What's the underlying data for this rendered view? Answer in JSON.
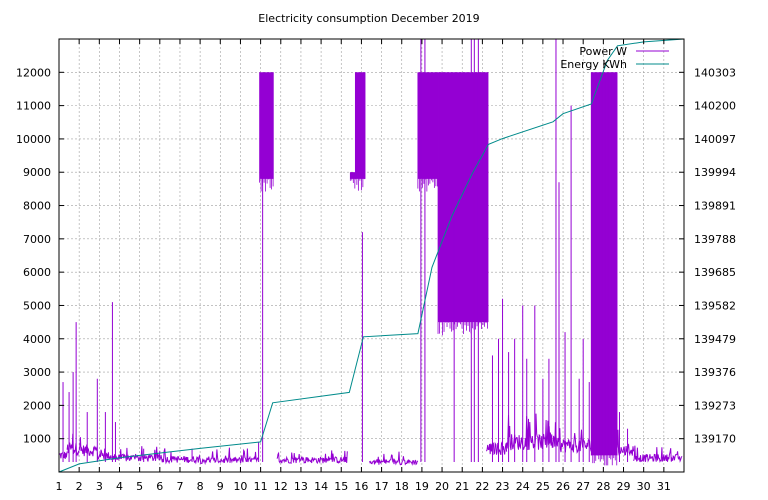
{
  "chart_data": {
    "type": "line",
    "title": "Electricity consumption December 2019",
    "xlabel": "",
    "ylabel": "",
    "y2label": "",
    "grid": true,
    "legend_position": "top-right",
    "x_ticks": [
      "1",
      "2",
      "3",
      "4",
      "5",
      "6",
      "7",
      "8",
      "9",
      "10",
      "11",
      "12",
      "13",
      "14",
      "15",
      "16",
      "17",
      "18",
      "19",
      "20",
      "21",
      "22",
      "23",
      "24",
      "25",
      "26",
      "27",
      "28",
      "29",
      "30",
      "31"
    ],
    "xlim": [
      1,
      32
    ],
    "y_ticks": [
      "1000",
      "2000",
      "3000",
      "4000",
      "5000",
      "6000",
      "7000",
      "8000",
      "9000",
      "10000",
      "11000",
      "12000"
    ],
    "ylim": [
      0,
      13000
    ],
    "y2_ticks": [
      "139170",
      "139273",
      "139376",
      "139479",
      "139582",
      "139685",
      "139788",
      "139891",
      "139994",
      "140097",
      "140200",
      "140303"
    ],
    "y2lim": [
      139067,
      140406
    ],
    "series": [
      {
        "name": "Power W",
        "axis": "y",
        "color": "#9400d3",
        "baseline_ranges": [
          [
            1.0,
            1.4,
            500
          ],
          [
            1.4,
            2.0,
            700
          ],
          [
            2.0,
            2.9,
            650
          ],
          [
            2.9,
            3.6,
            480
          ],
          [
            3.6,
            4.0,
            420
          ],
          [
            4.0,
            6.0,
            420
          ],
          [
            6.0,
            8.0,
            380
          ],
          [
            8.0,
            10.9,
            350
          ],
          [
            11.8,
            15.3,
            360
          ],
          [
            16.4,
            18.8,
            300
          ],
          [
            22.2,
            23.2,
            700
          ],
          [
            23.2,
            25.5,
            900
          ],
          [
            25.5,
            27.5,
            800
          ],
          [
            28.6,
            29.5,
            650
          ],
          [
            29.5,
            31.9,
            420
          ]
        ],
        "blocks": [
          [
            10.95,
            11.65,
            8800,
            12000
          ],
          [
            15.45,
            15.7,
            8800,
            9000
          ],
          [
            15.7,
            16.2,
            8800,
            12000
          ],
          [
            18.8,
            19.8,
            8800,
            12000
          ],
          [
            19.8,
            22.3,
            4500,
            12000
          ],
          [
            27.4,
            28.7,
            500,
            12000
          ]
        ],
        "spikes": [
          [
            1.2,
            2700
          ],
          [
            1.5,
            2400
          ],
          [
            1.7,
            3000
          ],
          [
            1.85,
            4500
          ],
          [
            2.4,
            1800
          ],
          [
            2.9,
            2800
          ],
          [
            3.3,
            1800
          ],
          [
            3.65,
            5100
          ],
          [
            3.8,
            1500
          ],
          [
            5.2,
            700
          ],
          [
            7.6,
            700
          ],
          [
            10.9,
            900
          ],
          [
            11.1,
            9000
          ],
          [
            16.05,
            7200
          ],
          [
            18.95,
            13000
          ],
          [
            19.15,
            13000
          ],
          [
            20.6,
            8000
          ],
          [
            21.45,
            13000
          ],
          [
            21.6,
            13000
          ],
          [
            21.8,
            13000
          ],
          [
            22.5,
            3500
          ],
          [
            22.8,
            4000
          ],
          [
            23.0,
            5200
          ],
          [
            23.3,
            3600
          ],
          [
            23.6,
            4000
          ],
          [
            24.0,
            5000
          ],
          [
            24.2,
            3400
          ],
          [
            24.6,
            5000
          ],
          [
            25.0,
            2800
          ],
          [
            25.3,
            3400
          ],
          [
            25.65,
            13000
          ],
          [
            25.8,
            8700
          ],
          [
            26.1,
            4200
          ],
          [
            26.4,
            11000
          ],
          [
            26.8,
            2800
          ],
          [
            27.0,
            4000
          ],
          [
            27.3,
            2700
          ],
          [
            28.8,
            1800
          ],
          [
            29.2,
            1300
          ]
        ]
      },
      {
        "name": "Energy KWh",
        "axis": "y2",
        "color": "#008b8b",
        "points": [
          [
            1.0,
            139067
          ],
          [
            2.0,
            139092
          ],
          [
            4.0,
            139111
          ],
          [
            8.0,
            139140
          ],
          [
            11.0,
            139160
          ],
          [
            11.6,
            139281
          ],
          [
            15.4,
            139313
          ],
          [
            16.1,
            139485
          ],
          [
            18.8,
            139495
          ],
          [
            19.5,
            139700
          ],
          [
            20.5,
            139860
          ],
          [
            21.5,
            139990
          ],
          [
            22.3,
            140080
          ],
          [
            23.0,
            140098
          ],
          [
            25.5,
            140150
          ],
          [
            26.0,
            140175
          ],
          [
            27.4,
            140205
          ],
          [
            28.2,
            140340
          ],
          [
            28.7,
            140385
          ],
          [
            30.0,
            140397
          ],
          [
            32.0,
            140410
          ]
        ]
      }
    ]
  }
}
